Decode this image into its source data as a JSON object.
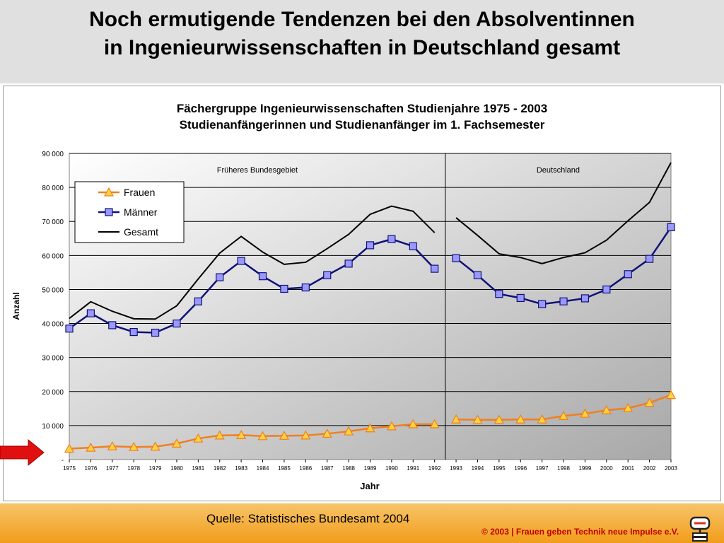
{
  "slide": {
    "title_line1": "Noch ermutigende Tendenzen bei den Absolventinnen",
    "title_line2": "in Ingenieurwissenschaften in Deutschland gesamt",
    "source": "Quelle: Statistisches Bundesamt 2004",
    "copyright": "© 2003 | Frauen geben Technik neue Impulse e.V."
  },
  "chart_data": {
    "type": "line",
    "title": "Fächergruppe Ingenieurwissenschaften Studienjahre 1975 - 2003",
    "subtitle": "Studienanfängerinnen und Studienanfänger im 1. Fachsemester",
    "xlabel": "Jahr",
    "ylabel": "Anzahl",
    "ylim": [
      0,
      90000
    ],
    "yticks": [
      0,
      10000,
      20000,
      30000,
      40000,
      50000,
      60000,
      70000,
      80000,
      90000
    ],
    "ytick_labels": [
      "-",
      "10 000",
      "20 000",
      "30 000",
      "40 000",
      "50 000",
      "60 000",
      "70 000",
      "80 000",
      "90 000"
    ],
    "grid": true,
    "legend_position": "top-left",
    "regions": [
      {
        "label": "Früheres Bundesgebiet",
        "from": "1975",
        "to": "1992"
      },
      {
        "label": "Deutschland",
        "from": "1993",
        "to": "2003"
      }
    ],
    "categories": [
      "1975",
      "1976",
      "1977",
      "1978",
      "1979",
      "1980",
      "1981",
      "1982",
      "1983",
      "1984",
      "1985",
      "1986",
      "1987",
      "1988",
      "1989",
      "1990",
      "1991",
      "1992",
      "1993",
      "1994",
      "1995",
      "1996",
      "1997",
      "1998",
      "1999",
      "2000",
      "2001",
      "2002",
      "2003"
    ],
    "series": [
      {
        "name": "Frauen",
        "color": "#f07f1e",
        "marker": "triangle",
        "marker_fill": "#ffd23f",
        "values": [
          3200,
          3500,
          3900,
          3700,
          3800,
          4700,
          6200,
          7100,
          7200,
          6900,
          7000,
          7100,
          7600,
          8300,
          9200,
          9800,
          10400,
          10400,
          11800,
          11700,
          11700,
          11800,
          11800,
          12800,
          13500,
          14500,
          15100,
          16700,
          19000
        ]
      },
      {
        "name": "Männer",
        "color": "#101078",
        "marker": "square",
        "marker_fill": "#9999ff",
        "values": [
          38500,
          43000,
          39500,
          37500,
          37300,
          40000,
          46500,
          53600,
          58400,
          53900,
          50200,
          50600,
          54200,
          57600,
          63000,
          64800,
          62700,
          56100,
          59200,
          54200,
          48700,
          47500,
          45700,
          46500,
          47400,
          50000,
          54500,
          59000,
          68300
        ]
      },
      {
        "name": "Gesamt",
        "color": "#000000",
        "marker": "none",
        "values": [
          41500,
          46400,
          43600,
          41400,
          41300,
          45200,
          53100,
          60700,
          65600,
          61000,
          57400,
          58000,
          62000,
          66200,
          72100,
          74500,
          73000,
          66700,
          71100,
          65900,
          60500,
          59400,
          57600,
          59400,
          60800,
          64500,
          70200,
          75600,
          87300
        ]
      }
    ]
  }
}
